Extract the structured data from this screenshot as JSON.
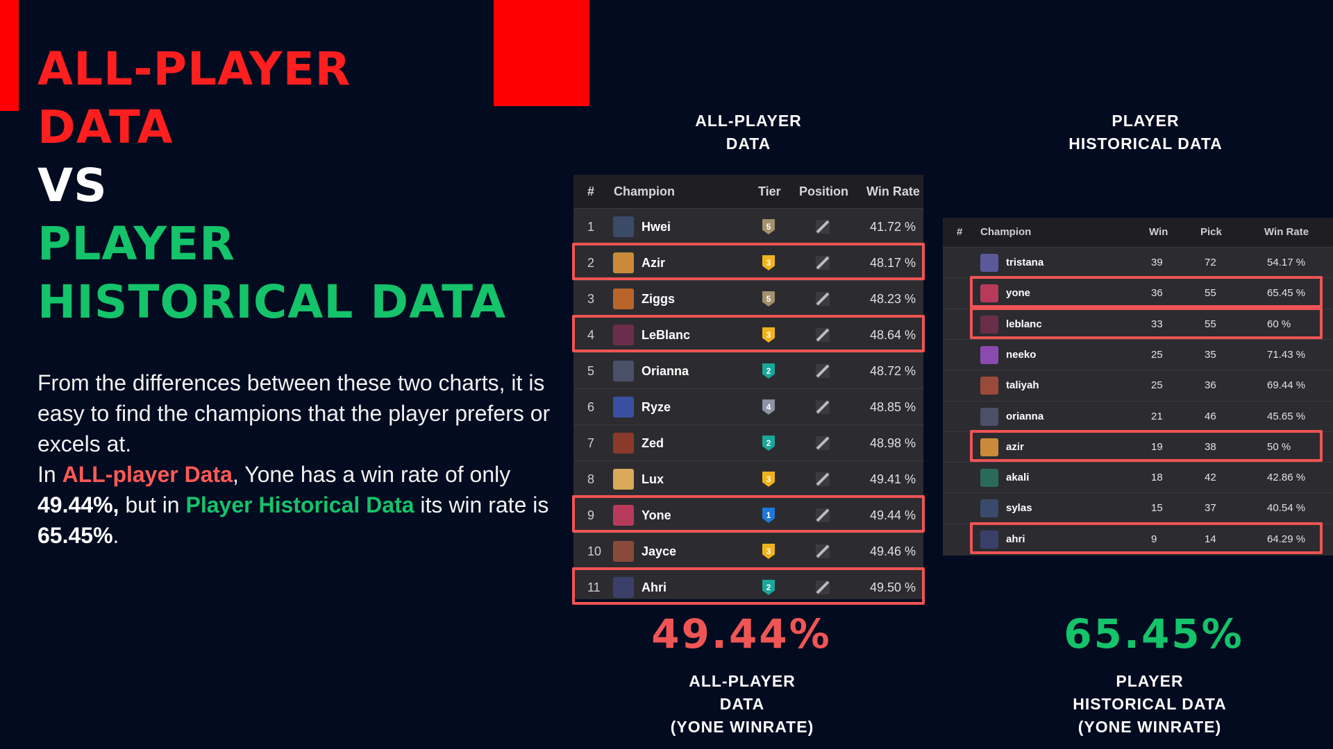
{
  "headline": {
    "line1": "ALL-PLAYER",
    "line2": "DATA",
    "line3": "VS",
    "line4": "PLAYER",
    "line5": "HISTORICAL DATA"
  },
  "paragraph": {
    "p1": "From the differences between these two charts, it is easy to find the champions that the player prefers or excels at.",
    "p2a": "In ",
    "p2b": "ALL-player Data",
    "p2c": ", Yone has a win rate of only ",
    "p2d": "49.44%,",
    "p2e": " but in ",
    "p2f": "Player Historical Data",
    "p2g": " its win rate is ",
    "p2h": "65.45%",
    "p2i": "."
  },
  "captions": {
    "table1_title_1": "ALL-PLAYER",
    "table1_title_2": "DATA",
    "table2_title_1": "PLAYER",
    "table2_title_2": "HISTORICAL DATA",
    "bottom_left_1": "ALL-PLAYER",
    "bottom_left_2": "DATA",
    "bottom_left_3": "(YONE WINRATE)",
    "bottom_right_1": "PLAYER",
    "bottom_right_2": "HISTORICAL DATA",
    "bottom_right_3": "(YONE WINRATE)"
  },
  "big_numbers": {
    "left": "49.44%",
    "right": "65.45%"
  },
  "colors": {
    "background": "#030b20",
    "accent_red": "#ff0000",
    "highlight_red": "#f05454",
    "accent_green": "#14c36a"
  },
  "table1": {
    "headers": {
      "num": "#",
      "champion": "Champion",
      "tier": "Tier",
      "position": "Position",
      "win_rate": "Win Rate"
    },
    "rows": [
      {
        "num": "1",
        "champion": "Hwei",
        "tier": "5",
        "win_rate": "41.72 %",
        "highlight": false,
        "portrait_color": "#3b4a66",
        "tier_color": "#a58f6e"
      },
      {
        "num": "2",
        "champion": "Azir",
        "tier": "3",
        "win_rate": "48.17 %",
        "highlight": true,
        "portrait_color": "#c98a3a",
        "tier_color": "#f2b21c"
      },
      {
        "num": "3",
        "champion": "Ziggs",
        "tier": "5",
        "win_rate": "48.23 %",
        "highlight": false,
        "portrait_color": "#b7652a",
        "tier_color": "#a58f6e"
      },
      {
        "num": "4",
        "champion": "LeBlanc",
        "tier": "3",
        "win_rate": "48.64 %",
        "highlight": true,
        "portrait_color": "#6b2e4a",
        "tier_color": "#f2b21c"
      },
      {
        "num": "5",
        "champion": "Orianna",
        "tier": "2",
        "win_rate": "48.72 %",
        "highlight": false,
        "portrait_color": "#4a5068",
        "tier_color": "#1aa69a"
      },
      {
        "num": "6",
        "champion": "Ryze",
        "tier": "4",
        "win_rate": "48.85 %",
        "highlight": false,
        "portrait_color": "#3a4fa0",
        "tier_color": "#8c93a3"
      },
      {
        "num": "7",
        "champion": "Zed",
        "tier": "2",
        "win_rate": "48.98 %",
        "highlight": false,
        "portrait_color": "#8a3a2a",
        "tier_color": "#1aa69a"
      },
      {
        "num": "8",
        "champion": "Lux",
        "tier": "3",
        "win_rate": "49.41 %",
        "highlight": false,
        "portrait_color": "#d9a85a",
        "tier_color": "#f2b21c"
      },
      {
        "num": "9",
        "champion": "Yone",
        "tier": "1",
        "win_rate": "49.44 %",
        "highlight": true,
        "portrait_color": "#b83a5a",
        "tier_color": "#1e78d8"
      },
      {
        "num": "10",
        "champion": "Jayce",
        "tier": "3",
        "win_rate": "49.46 %",
        "highlight": false,
        "portrait_color": "#8a4a3a",
        "tier_color": "#f2b21c"
      },
      {
        "num": "11",
        "champion": "Ahri",
        "tier": "2",
        "win_rate": "49.50 %",
        "highlight": true,
        "portrait_color": "#3a3f6a",
        "tier_color": "#1aa69a"
      }
    ]
  },
  "table2": {
    "headers": {
      "num": "#",
      "champion": "Champion",
      "win": "Win",
      "pick": "Pick",
      "win_rate": "Win Rate"
    },
    "rows": [
      {
        "champion": "tristana",
        "win": "39",
        "pick": "72",
        "win_rate": "54.17 %",
        "highlight": false,
        "portrait_color": "#5a5a9a"
      },
      {
        "champion": "yone",
        "win": "36",
        "pick": "55",
        "win_rate": "65.45 %",
        "highlight": true,
        "portrait_color": "#b83a5a"
      },
      {
        "champion": "leblanc",
        "win": "33",
        "pick": "55",
        "win_rate": "60 %",
        "highlight": true,
        "portrait_color": "#6b2e4a"
      },
      {
        "champion": "neeko",
        "win": "25",
        "pick": "35",
        "win_rate": "71.43 %",
        "highlight": false,
        "portrait_color": "#8a4ab0"
      },
      {
        "champion": "taliyah",
        "win": "25",
        "pick": "36",
        "win_rate": "69.44 %",
        "highlight": false,
        "portrait_color": "#9a4a3a"
      },
      {
        "champion": "orianna",
        "win": "21",
        "pick": "46",
        "win_rate": "45.65 %",
        "highlight": false,
        "portrait_color": "#4a5068"
      },
      {
        "champion": "azir",
        "win": "19",
        "pick": "38",
        "win_rate": "50 %",
        "highlight": true,
        "portrait_color": "#c98a3a"
      },
      {
        "champion": "akali",
        "win": "18",
        "pick": "42",
        "win_rate": "42.86 %",
        "highlight": false,
        "portrait_color": "#2a6a5a"
      },
      {
        "champion": "sylas",
        "win": "15",
        "pick": "37",
        "win_rate": "40.54 %",
        "highlight": false,
        "portrait_color": "#3a4a6a"
      },
      {
        "champion": "ahri",
        "win": "9",
        "pick": "14",
        "win_rate": "64.29 %",
        "highlight": true,
        "portrait_color": "#3a3f6a"
      }
    ]
  }
}
